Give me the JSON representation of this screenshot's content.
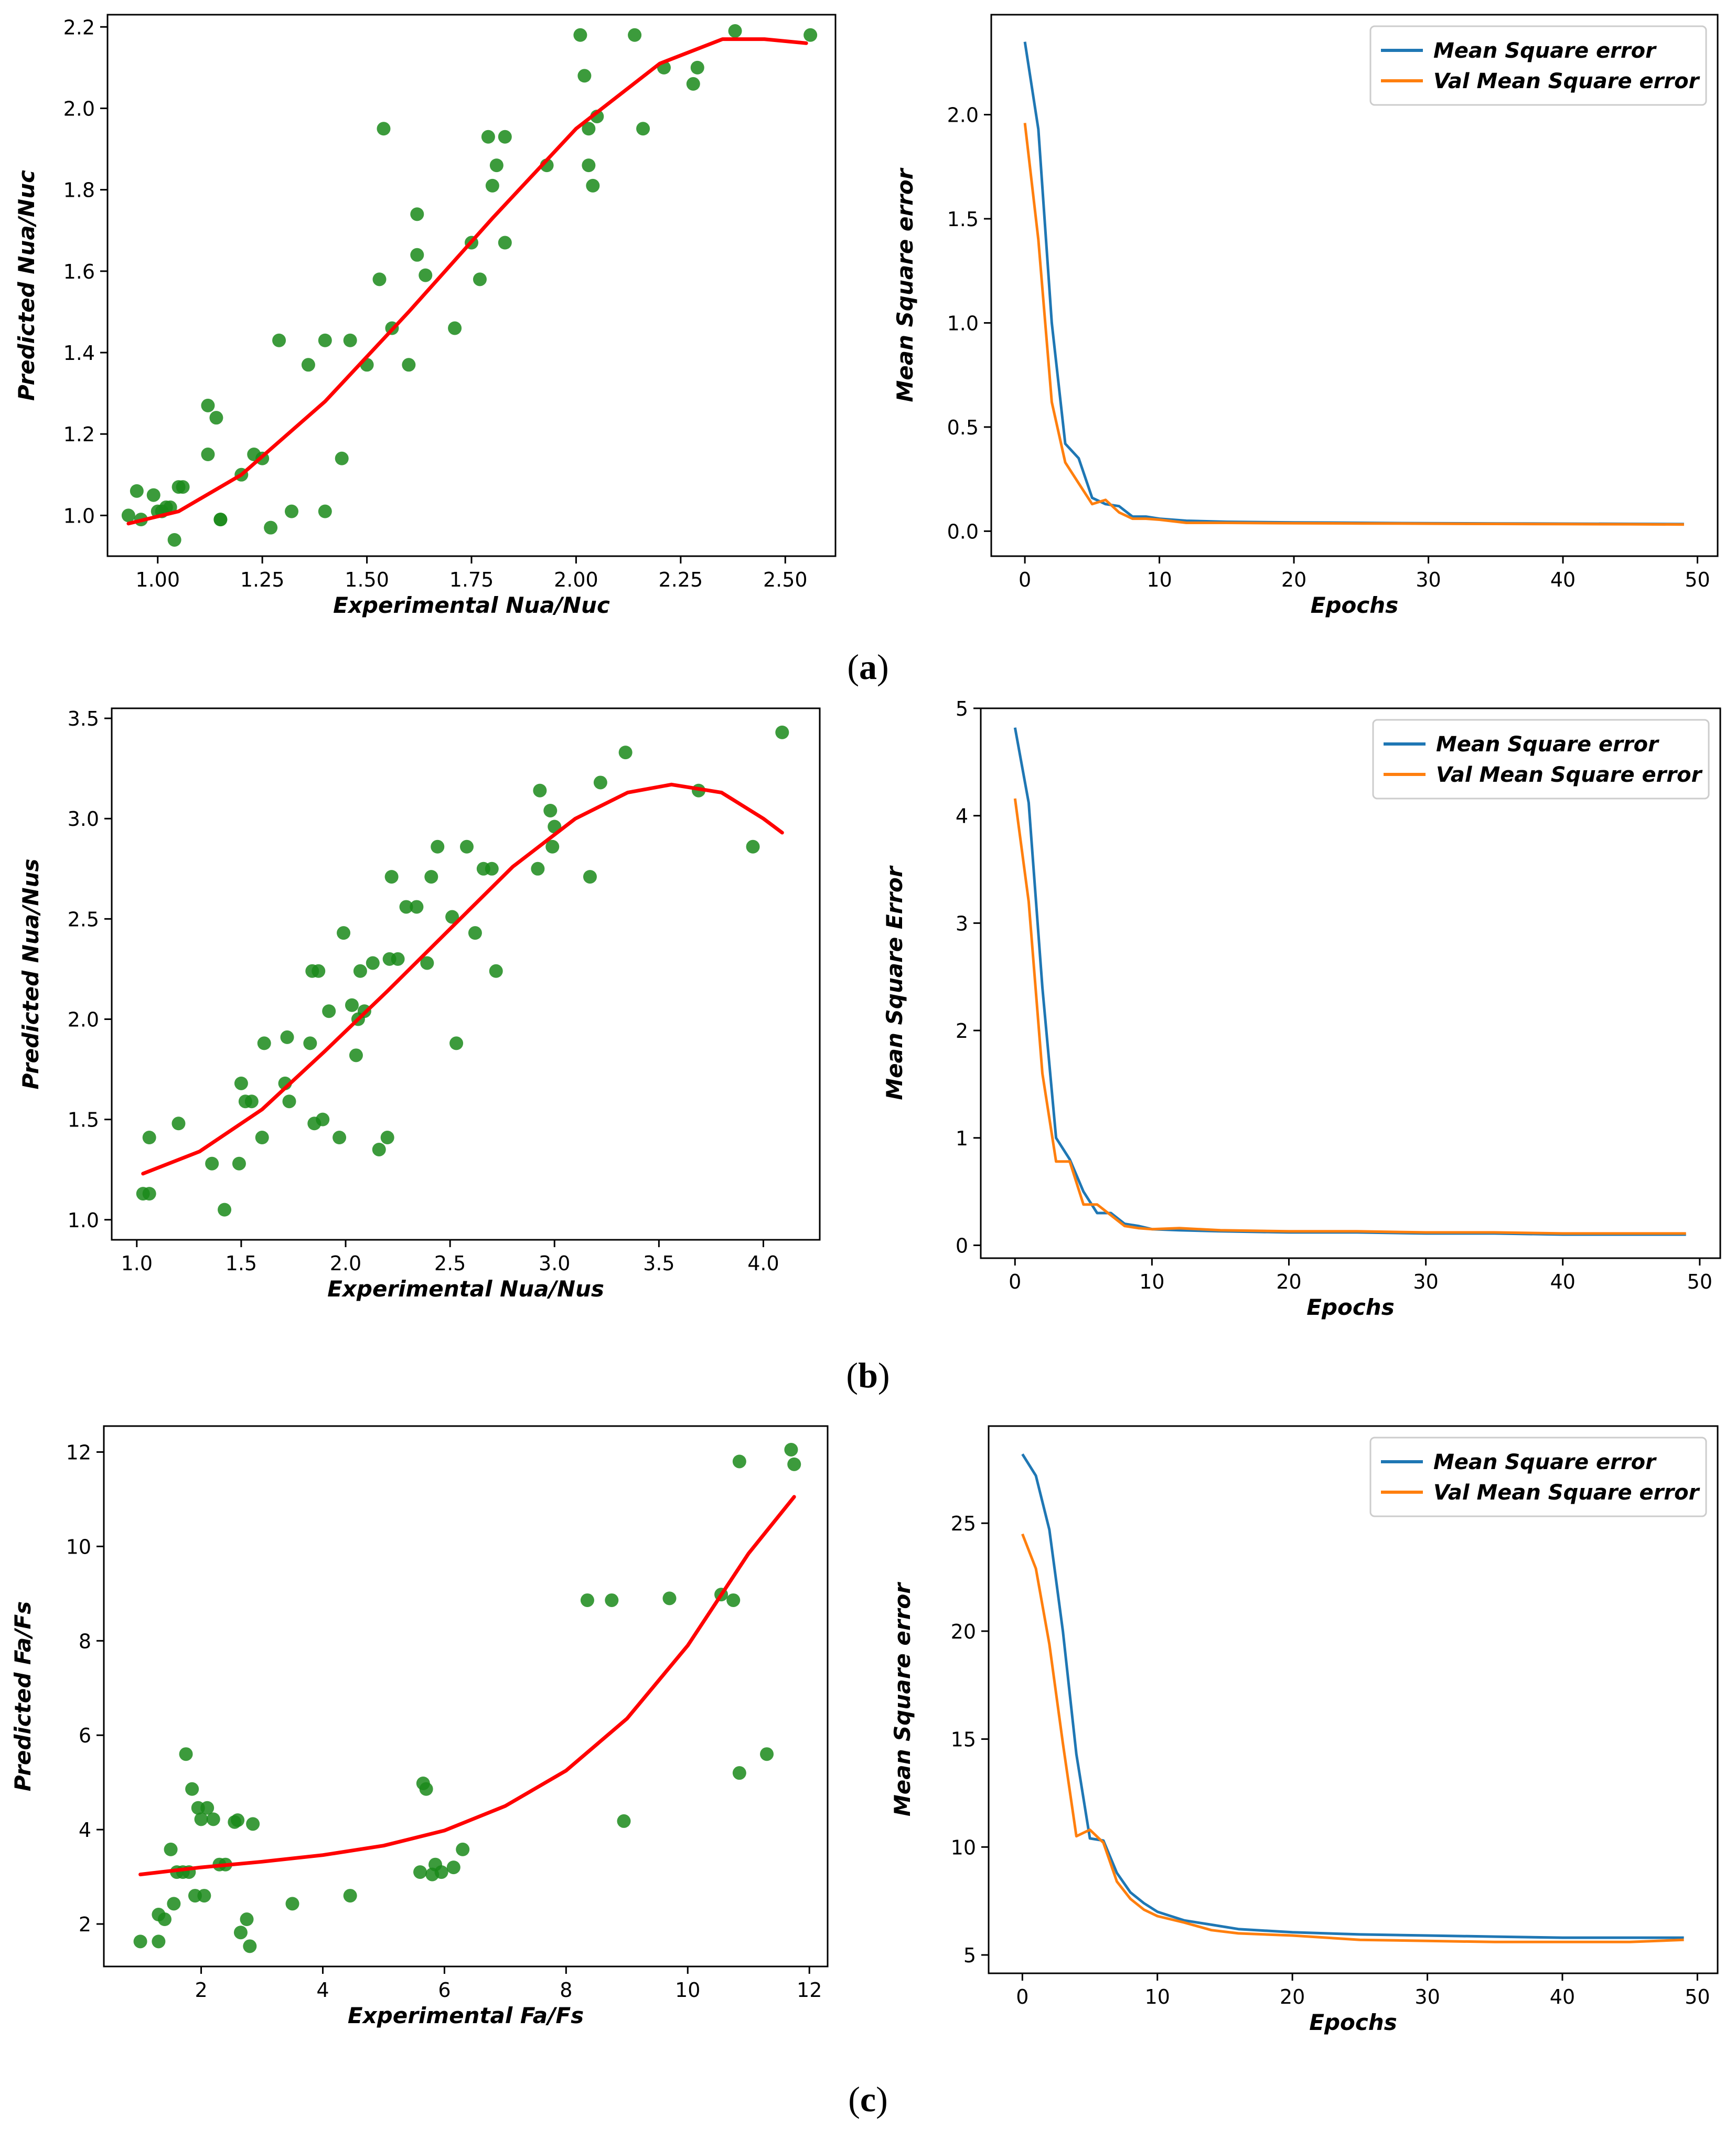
{
  "chart_data": [
    {
      "id": "a-left",
      "type": "scatter",
      "title": "",
      "xlabel": "Experimental Nua/Nuc",
      "ylabel": "Predicted Nua/Nuc",
      "xlim": [
        0.88,
        2.62
      ],
      "ylim": [
        0.9,
        2.23
      ],
      "xticks": [
        1.0,
        1.25,
        1.5,
        1.75,
        2.0,
        2.25,
        2.5
      ],
      "xtick_labels": [
        "1.00",
        "1.25",
        "1.50",
        "1.75",
        "2.00",
        "2.25",
        "2.50"
      ],
      "yticks": [
        1.0,
        1.2,
        1.4,
        1.6,
        1.8,
        2.0,
        2.2
      ],
      "ytick_labels": [
        "1.0",
        "1.2",
        "1.4",
        "1.6",
        "1.8",
        "2.0",
        "2.2"
      ],
      "points": {
        "color": "#1a8a1a",
        "x": [
          0.93,
          0.95,
          0.96,
          0.99,
          1.0,
          1.01,
          1.02,
          1.03,
          1.04,
          1.05,
          1.06,
          1.12,
          1.12,
          1.14,
          1.15,
          1.15,
          1.2,
          1.23,
          1.25,
          1.27,
          1.29,
          1.32,
          1.36,
          1.4,
          1.4,
          1.44,
          1.46,
          1.5,
          1.53,
          1.54,
          1.56,
          1.6,
          1.62,
          1.62,
          1.64,
          1.71,
          1.75,
          1.77,
          1.79,
          1.8,
          1.81,
          1.83,
          1.83,
          1.93,
          2.01,
          2.02,
          2.03,
          2.03,
          2.04,
          2.05,
          2.14,
          2.16,
          2.21,
          2.28,
          2.29,
          2.38,
          2.56
        ],
        "y": [
          1.0,
          1.06,
          0.99,
          1.05,
          1.01,
          1.01,
          1.02,
          1.02,
          0.94,
          1.07,
          1.07,
          1.27,
          1.15,
          1.24,
          0.99,
          0.99,
          1.1,
          1.15,
          1.14,
          0.97,
          1.43,
          1.01,
          1.37,
          1.43,
          1.01,
          1.14,
          1.43,
          1.37,
          1.58,
          1.95,
          1.46,
          1.37,
          1.74,
          1.64,
          1.59,
          1.46,
          1.67,
          1.58,
          1.93,
          1.81,
          1.86,
          1.93,
          1.67,
          1.86,
          2.18,
          2.08,
          1.95,
          1.86,
          1.81,
          1.98,
          2.18,
          1.95,
          2.1,
          2.06,
          2.1,
          2.19,
          2.18
        ]
      },
      "fit": {
        "color": "#ff0000",
        "x": [
          0.93,
          1.05,
          1.2,
          1.4,
          1.6,
          1.8,
          2.0,
          2.2,
          2.35,
          2.45,
          2.55
        ],
        "y": [
          0.98,
          1.01,
          1.1,
          1.28,
          1.5,
          1.73,
          1.95,
          2.11,
          2.17,
          2.17,
          2.16
        ]
      }
    },
    {
      "id": "a-right",
      "type": "line",
      "title": "",
      "xlabel": "Epochs",
      "ylabel": "Mean Square error",
      "xlim": [
        -2.5,
        51.5
      ],
      "ylim": [
        -0.12,
        2.48
      ],
      "xticks": [
        0,
        10,
        20,
        30,
        40,
        50
      ],
      "xtick_labels": [
        "0",
        "10",
        "20",
        "30",
        "40",
        "50"
      ],
      "yticks": [
        0.0,
        0.5,
        1.0,
        1.5,
        2.0
      ],
      "ytick_labels": [
        "0.0",
        "0.5",
        "1.0",
        "1.5",
        "2.0"
      ],
      "legend_position": "top-right",
      "series": [
        {
          "name": "Mean Square error",
          "color": "#1f77b4",
          "x": [
            0,
            1,
            2,
            3,
            4,
            5,
            6,
            7,
            8,
            9,
            10,
            12,
            15,
            20,
            25,
            30,
            35,
            40,
            45,
            49
          ],
          "y": [
            2.35,
            1.93,
            1.0,
            0.42,
            0.35,
            0.16,
            0.13,
            0.12,
            0.07,
            0.07,
            0.06,
            0.05,
            0.045,
            0.042,
            0.04,
            0.038,
            0.037,
            0.036,
            0.035,
            0.034
          ]
        },
        {
          "name": "Val Mean Square error",
          "color": "#ff7f0e",
          "x": [
            0,
            1,
            2,
            3,
            4,
            5,
            6,
            7,
            8,
            9,
            10,
            12,
            15,
            20,
            25,
            30,
            35,
            40,
            45,
            49
          ],
          "y": [
            1.96,
            1.4,
            0.62,
            0.33,
            0.23,
            0.13,
            0.15,
            0.09,
            0.06,
            0.06,
            0.055,
            0.04,
            0.04,
            0.038,
            0.037,
            0.036,
            0.035,
            0.034,
            0.033,
            0.032
          ]
        }
      ]
    },
    {
      "id": "b-left",
      "type": "scatter",
      "title": "",
      "xlabel": "Experimental Nua/Nus",
      "ylabel": "Predicted Nua/Nus",
      "xlim": [
        0.88,
        4.27
      ],
      "ylim": [
        0.9,
        3.55
      ],
      "xticks": [
        1.0,
        1.5,
        2.0,
        2.5,
        3.0,
        3.5,
        4.0
      ],
      "xtick_labels": [
        "1.0",
        "1.5",
        "2.0",
        "2.5",
        "3.0",
        "3.5",
        "4.0"
      ],
      "yticks": [
        1.0,
        1.5,
        2.0,
        2.5,
        3.0,
        3.5
      ],
      "ytick_labels": [
        "1.0",
        "1.5",
        "2.0",
        "2.5",
        "3.0",
        "3.5"
      ],
      "points": {
        "color": "#1a8a1a",
        "x": [
          1.03,
          1.06,
          1.06,
          1.2,
          1.36,
          1.42,
          1.49,
          1.5,
          1.52,
          1.55,
          1.6,
          1.61,
          1.71,
          1.72,
          1.73,
          1.83,
          1.84,
          1.85,
          1.87,
          1.89,
          1.92,
          1.97,
          1.99,
          2.03,
          2.05,
          2.06,
          2.07,
          2.09,
          2.13,
          2.16,
          2.2,
          2.21,
          2.22,
          2.25,
          2.29,
          2.34,
          2.39,
          2.41,
          2.44,
          2.51,
          2.53,
          2.58,
          2.62,
          2.66,
          2.7,
          2.72,
          2.92,
          2.93,
          2.98,
          2.99,
          3.0,
          3.17,
          3.22,
          3.34,
          3.69,
          3.95,
          4.09
        ],
        "y": [
          1.13,
          1.41,
          1.13,
          1.48,
          1.28,
          1.05,
          1.28,
          1.68,
          1.59,
          1.59,
          1.41,
          1.88,
          1.68,
          1.91,
          1.59,
          1.88,
          2.24,
          1.48,
          2.24,
          1.5,
          2.04,
          1.41,
          2.43,
          2.07,
          1.82,
          2.0,
          2.24,
          2.04,
          2.28,
          1.35,
          1.41,
          2.3,
          2.71,
          2.3,
          2.56,
          2.56,
          2.28,
          2.71,
          2.86,
          2.51,
          1.88,
          2.86,
          2.43,
          2.75,
          2.75,
          2.24,
          2.75,
          3.14,
          3.04,
          2.86,
          2.96,
          2.71,
          3.18,
          3.33,
          3.14,
          2.86,
          3.43
        ]
      },
      "fit": {
        "color": "#ff0000",
        "x": [
          1.03,
          1.3,
          1.6,
          1.9,
          2.2,
          2.5,
          2.8,
          3.1,
          3.35,
          3.56,
          3.8,
          4.0,
          4.09
        ],
        "y": [
          1.23,
          1.34,
          1.55,
          1.84,
          2.14,
          2.45,
          2.76,
          3.0,
          3.13,
          3.17,
          3.13,
          3.0,
          2.93
        ]
      }
    },
    {
      "id": "b-right",
      "type": "line",
      "title": "",
      "xlabel": "Epochs",
      "ylabel": "Mean Square Error",
      "xlim": [
        -2.5,
        51.5
      ],
      "ylim": [
        -0.12,
        5.0
      ],
      "xticks": [
        0,
        10,
        20,
        30,
        40,
        50
      ],
      "xtick_labels": [
        "0",
        "10",
        "20",
        "30",
        "40",
        "50"
      ],
      "yticks": [
        0,
        1,
        2,
        3,
        4,
        5
      ],
      "ytick_labels": [
        "0",
        "1",
        "2",
        "3",
        "4",
        "5"
      ],
      "legend_position": "top-right",
      "series": [
        {
          "name": "Mean Square error",
          "color": "#1f77b4",
          "x": [
            0,
            1,
            2,
            3,
            4,
            5,
            6,
            7,
            8,
            9,
            10,
            12,
            15,
            20,
            25,
            30,
            35,
            40,
            45,
            49
          ],
          "y": [
            4.82,
            4.12,
            2.4,
            1.0,
            0.8,
            0.5,
            0.3,
            0.3,
            0.2,
            0.18,
            0.15,
            0.14,
            0.13,
            0.12,
            0.12,
            0.11,
            0.11,
            0.1,
            0.1,
            0.1
          ]
        },
        {
          "name": "Val Mean Square error",
          "color": "#ff7f0e",
          "x": [
            0,
            1,
            2,
            3,
            4,
            5,
            6,
            7,
            8,
            9,
            10,
            12,
            15,
            20,
            25,
            30,
            35,
            40,
            45,
            49
          ],
          "y": [
            4.16,
            3.2,
            1.6,
            0.78,
            0.78,
            0.38,
            0.38,
            0.28,
            0.18,
            0.16,
            0.15,
            0.16,
            0.14,
            0.13,
            0.13,
            0.12,
            0.12,
            0.11,
            0.11,
            0.11
          ]
        }
      ]
    },
    {
      "id": "c-left",
      "type": "scatter",
      "title": "",
      "xlabel": "Experimental Fa/Fs",
      "ylabel": "Predicted Fa/Fs",
      "xlim": [
        0.4,
        12.3
      ],
      "ylim": [
        1.1,
        12.55
      ],
      "xticks": [
        2,
        4,
        6,
        8,
        10,
        12
      ],
      "xtick_labels": [
        "2",
        "4",
        "6",
        "8",
        "10",
        "12"
      ],
      "yticks": [
        2,
        4,
        6,
        8,
        10,
        12
      ],
      "ytick_labels": [
        "2",
        "4",
        "6",
        "8",
        "10",
        "12"
      ],
      "points": {
        "color": "#1a8a1a",
        "x": [
          1.0,
          1.3,
          1.3,
          1.4,
          1.5,
          1.55,
          1.6,
          1.7,
          1.75,
          1.8,
          1.85,
          1.9,
          1.95,
          2.0,
          2.05,
          2.1,
          2.2,
          2.3,
          2.4,
          2.55,
          2.6,
          2.65,
          2.75,
          2.8,
          2.85,
          3.5,
          4.45,
          5.6,
          5.65,
          5.7,
          5.8,
          5.85,
          5.95,
          6.15,
          6.3,
          8.35,
          8.75,
          8.95,
          9.7,
          10.55,
          10.75,
          10.85,
          10.85,
          11.3,
          11.7,
          11.75
        ],
        "y": [
          1.63,
          1.63,
          2.2,
          2.1,
          3.58,
          2.43,
          3.1,
          3.1,
          5.6,
          3.1,
          4.86,
          2.6,
          4.46,
          4.22,
          2.6,
          4.46,
          4.22,
          3.26,
          3.26,
          4.16,
          4.2,
          1.82,
          2.1,
          1.53,
          4.12,
          2.43,
          2.6,
          3.1,
          4.98,
          4.86,
          3.05,
          3.26,
          3.1,
          3.2,
          3.58,
          8.86,
          8.86,
          4.18,
          8.9,
          8.98,
          8.86,
          5.2,
          11.8,
          5.6,
          12.05,
          11.74
        ]
      },
      "fit": {
        "color": "#ff0000",
        "x": [
          1.0,
          2.0,
          3.0,
          4.0,
          5.0,
          6.0,
          7.0,
          8.0,
          9.0,
          10.0,
          11.0,
          11.75
        ],
        "y": [
          3.05,
          3.2,
          3.32,
          3.46,
          3.66,
          3.98,
          4.5,
          5.25,
          6.35,
          7.9,
          9.85,
          11.05
        ]
      }
    },
    {
      "id": "c-right",
      "type": "line",
      "title": "",
      "xlabel": "Epochs",
      "ylabel": "Mean Square error",
      "xlim": [
        -2.5,
        51.5
      ],
      "ylim": [
        4.15,
        29.5
      ],
      "xticks": [
        0,
        10,
        20,
        30,
        40,
        50
      ],
      "xtick_labels": [
        "0",
        "10",
        "20",
        "30",
        "40",
        "50"
      ],
      "yticks": [
        5,
        10,
        15,
        20,
        25
      ],
      "ytick_labels": [
        "5",
        "10",
        "15",
        "20",
        "25"
      ],
      "legend_position": "top-right",
      "series": [
        {
          "name": "Mean Square error",
          "color": "#1f77b4",
          "x": [
            0,
            1,
            2,
            3,
            4,
            5,
            6,
            7,
            8,
            9,
            10,
            12,
            14,
            16,
            20,
            25,
            30,
            35,
            40,
            45,
            49
          ],
          "y": [
            28.2,
            27.2,
            24.7,
            20.0,
            14.3,
            10.4,
            10.3,
            8.8,
            7.9,
            7.4,
            7.0,
            6.6,
            6.4,
            6.2,
            6.05,
            5.95,
            5.9,
            5.85,
            5.8,
            5.8,
            5.8
          ]
        },
        {
          "name": "Val Mean Square error",
          "color": "#ff7f0e",
          "x": [
            0,
            1,
            2,
            3,
            4,
            5,
            6,
            7,
            8,
            9,
            10,
            12,
            14,
            16,
            20,
            25,
            30,
            35,
            40,
            45,
            49
          ],
          "y": [
            24.5,
            22.9,
            19.4,
            14.8,
            10.5,
            10.8,
            10.2,
            8.4,
            7.6,
            7.1,
            6.8,
            6.5,
            6.15,
            6.0,
            5.9,
            5.7,
            5.65,
            5.6,
            5.6,
            5.6,
            5.7
          ]
        }
      ]
    }
  ],
  "captions": {
    "a": "a",
    "b": "b",
    "c": "c"
  }
}
